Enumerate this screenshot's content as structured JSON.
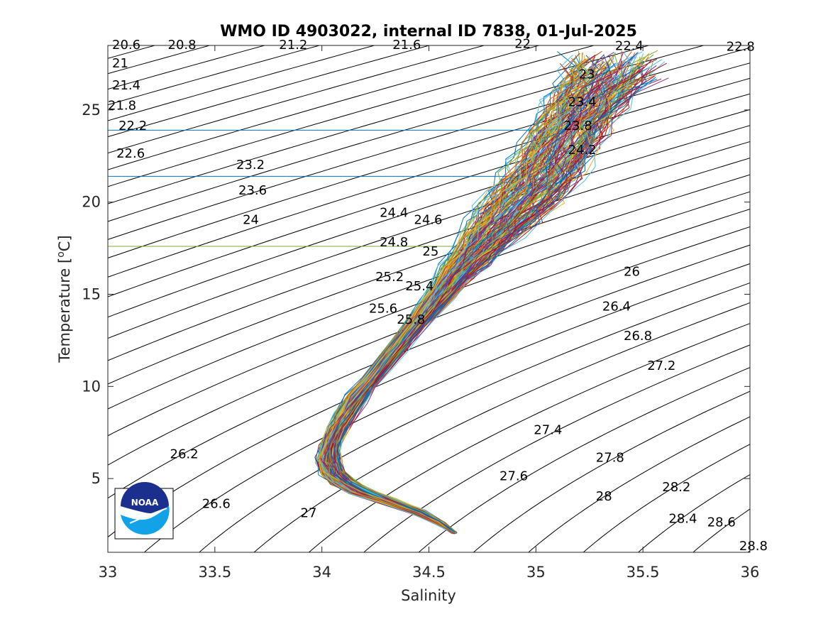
{
  "chart_data": {
    "type": "line",
    "title": "WMO ID 4903022, internal ID 7838, 01-Jul-2025",
    "xlabel": "Salinity",
    "ylabel": "Temperature [",
    "ylabel_unit": "o",
    "ylabel_suffix": "C]",
    "xlim": [
      33,
      36
    ],
    "ylim": [
      1,
      28.5
    ],
    "x_ticks": [
      33,
      33.5,
      34,
      34.5,
      35,
      35.5,
      36
    ],
    "x_tick_labels": [
      "33",
      "33.5",
      "34",
      "34.5",
      "35",
      "35.5",
      "36"
    ],
    "y_ticks": [
      5,
      10,
      15,
      20,
      25
    ],
    "y_tick_labels": [
      "5",
      "10",
      "15",
      "20",
      "25"
    ],
    "grid": false,
    "logo_text": "NOAA",
    "density_contours": {
      "levels": [
        20.6,
        20.8,
        21,
        21.2,
        21.4,
        21.6,
        21.8,
        22,
        22.2,
        22.4,
        22.6,
        22.8,
        23,
        23.2,
        23.4,
        23.6,
        23.8,
        24,
        24.2,
        24.4,
        24.6,
        24.8,
        25,
        25.2,
        25.4,
        25.6,
        25.8,
        26,
        26.2,
        26.4,
        26.6,
        26.8,
        27,
        27.2,
        27.4,
        27.6,
        27.8,
        28,
        28.2,
        28.4,
        28.6,
        28.8
      ],
      "labels": [
        {
          "text": "20.6",
          "s": 33.02,
          "t": 28.5
        },
        {
          "text": "20.8",
          "s": 33.28,
          "t": 28.5
        },
        {
          "text": "21.2",
          "s": 33.8,
          "t": 28.5
        },
        {
          "text": "21.6",
          "s": 34.33,
          "t": 28.5
        },
        {
          "text": "22",
          "s": 34.9,
          "t": 28.55
        },
        {
          "text": "22.4",
          "s": 35.37,
          "t": 28.45
        },
        {
          "text": "22.8",
          "s": 35.89,
          "t": 28.4
        },
        {
          "text": "21",
          "s": 33.02,
          "t": 27.5
        },
        {
          "text": "21.4",
          "s": 33.02,
          "t": 26.3
        },
        {
          "text": "21.8",
          "s": 33.0,
          "t": 25.2
        },
        {
          "text": "22.2",
          "s": 33.05,
          "t": 24.1
        },
        {
          "text": "22.6",
          "s": 33.04,
          "t": 22.6
        },
        {
          "text": "23",
          "s": 35.2,
          "t": 26.9
        },
        {
          "text": "23.4",
          "s": 35.15,
          "t": 25.4
        },
        {
          "text": "23.8",
          "s": 35.13,
          "t": 24.1
        },
        {
          "text": "24.2",
          "s": 35.15,
          "t": 22.8
        },
        {
          "text": "23.2",
          "s": 33.6,
          "t": 22.0
        },
        {
          "text": "23.6",
          "s": 33.61,
          "t": 20.6
        },
        {
          "text": "24",
          "s": 33.63,
          "t": 19.0
        },
        {
          "text": "24.4",
          "s": 34.27,
          "t": 19.4
        },
        {
          "text": "24.6",
          "s": 34.43,
          "t": 19.0
        },
        {
          "text": "24.8",
          "s": 34.27,
          "t": 17.8
        },
        {
          "text": "25",
          "s": 34.47,
          "t": 17.3
        },
        {
          "text": "25.2",
          "s": 34.25,
          "t": 15.9
        },
        {
          "text": "25.4",
          "s": 34.39,
          "t": 15.4
        },
        {
          "text": "25.6",
          "s": 34.22,
          "t": 14.2
        },
        {
          "text": "25.8",
          "s": 34.35,
          "t": 13.6
        },
        {
          "text": "26",
          "s": 35.41,
          "t": 16.2
        },
        {
          "text": "26.4",
          "s": 35.31,
          "t": 14.3
        },
        {
          "text": "26.8",
          "s": 35.41,
          "t": 12.7
        },
        {
          "text": "27.2",
          "s": 35.52,
          "t": 11.1
        },
        {
          "text": "27.4",
          "s": 34.99,
          "t": 7.6
        },
        {
          "text": "27.8",
          "s": 35.28,
          "t": 6.1
        },
        {
          "text": "27.6",
          "s": 34.83,
          "t": 5.1
        },
        {
          "text": "28",
          "s": 35.28,
          "t": 4.0
        },
        {
          "text": "28.2",
          "s": 35.59,
          "t": 4.5
        },
        {
          "text": "28.4",
          "s": 35.62,
          "t": 2.8
        },
        {
          "text": "28.6",
          "s": 35.8,
          "t": 2.6
        },
        {
          "text": "28.8",
          "s": 35.95,
          "t": 1.3
        },
        {
          "text": "26.2",
          "s": 33.29,
          "t": 6.3
        },
        {
          "text": "26.6",
          "s": 33.44,
          "t": 3.6
        },
        {
          "text": "27",
          "s": 33.9,
          "t": 3.1
        }
      ]
    },
    "reference_lines": [
      {
        "t": 23.9,
        "s_end": 35.05,
        "color": "#0072bd"
      },
      {
        "t": 21.4,
        "s_end": 35.0,
        "color": "#0072bd"
      },
      {
        "t": 17.6,
        "s_end": 34.64,
        "color": "#77ac30"
      }
    ],
    "profile_colors": [
      "#0072bd",
      "#d95319",
      "#edb120",
      "#7e2f8e",
      "#77ac30",
      "#4dbeee",
      "#a2142f"
    ],
    "profile_count": 180,
    "ts_mean_curve": {
      "t": [
        2.0,
        2.6,
        3.2,
        3.8,
        4.3,
        4.8,
        5.3,
        6.0,
        6.8,
        7.6,
        8.4,
        9.3,
        10.2,
        11.2,
        12.2,
        13.2,
        14.2,
        15.2,
        16.2,
        17.0,
        17.8,
        18.6,
        19.4,
        20.2,
        21.0,
        21.8,
        22.6,
        23.4,
        24.2,
        25.0,
        25.8,
        26.6,
        27.4
      ],
      "s": [
        34.62,
        34.55,
        34.45,
        34.3,
        34.18,
        34.1,
        34.05,
        34.03,
        34.04,
        34.07,
        34.11,
        34.16,
        34.22,
        34.29,
        34.36,
        34.43,
        34.5,
        34.57,
        34.63,
        34.7,
        34.76,
        34.82,
        34.88,
        34.94,
        35.0,
        35.05,
        35.09,
        35.13,
        35.17,
        35.21,
        35.26,
        35.31,
        35.36
      ],
      "spread": [
        0.01,
        0.02,
        0.03,
        0.04,
        0.05,
        0.05,
        0.05,
        0.05,
        0.04,
        0.04,
        0.04,
        0.04,
        0.03,
        0.03,
        0.03,
        0.03,
        0.04,
        0.05,
        0.07,
        0.08,
        0.1,
        0.12,
        0.14,
        0.15,
        0.15,
        0.15,
        0.15,
        0.15,
        0.15,
        0.15,
        0.16,
        0.18,
        0.2
      ]
    }
  }
}
